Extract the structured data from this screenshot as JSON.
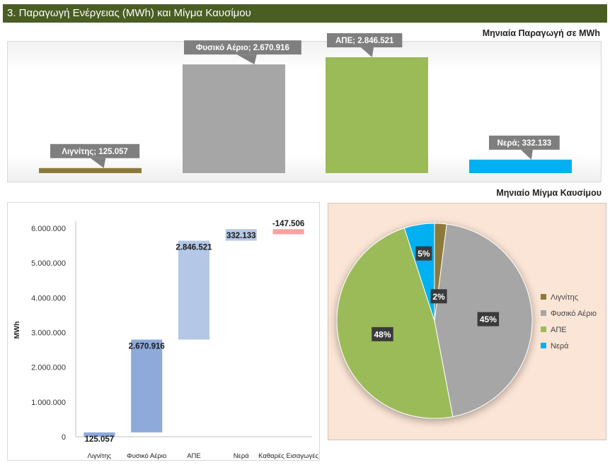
{
  "header": {
    "title": "3. Παραγωγή Ενέργειας (MWh) και Μίγμα Καυσίμου"
  },
  "chart_data": [
    {
      "type": "bar",
      "title": "Μηνιαία Παραγωγή σε MWh",
      "categories": [
        "Λιγνίτης",
        "Φυσικό Αέριο",
        "ΑΠΕ",
        "Νερά"
      ],
      "values": [
        125057,
        2670916,
        2846521,
        332133
      ],
      "value_labels": [
        "Λιγνίτης; 125.057",
        "Φυσικό Αέριο; 2.670.916",
        "ΑΠΕ; 2.846.521",
        "Νερά; 332.133"
      ],
      "colors": [
        "#8c7a3b",
        "#a6a6a6",
        "#9bbb59",
        "#00b0f0"
      ],
      "xlabel": "",
      "ylabel": "",
      "ylim": [
        0,
        2846521
      ]
    },
    {
      "type": "bar",
      "subtype": "waterfall",
      "title": "",
      "categories": [
        "Λιγνίτης",
        "Φυσικό Αέριο",
        "ΑΠΕ",
        "Νερά",
        "Καθαρές Εισαγωγές"
      ],
      "values": [
        125057,
        2670916,
        2846521,
        332133,
        -147506
      ],
      "value_labels": [
        "125.057",
        "2.670.916",
        "2.846.521",
        "332.133",
        "-147.506"
      ],
      "colors": [
        "#8eaadb",
        "#8eaadb",
        "#b4c7e7",
        "#b4c7e7",
        "#f4a3a3"
      ],
      "ylabel": "MWh",
      "xlabel": "",
      "ylim": [
        0,
        6000000
      ],
      "y_ticks": [
        0,
        1000000,
        2000000,
        3000000,
        4000000,
        5000000,
        6000000
      ],
      "y_tick_labels": [
        "0",
        "1.000.000",
        "2.000.000",
        "3.000.000",
        "4.000.000",
        "5.000.000",
        "6.000.000"
      ],
      "grid": false
    },
    {
      "type": "pie",
      "title": "Μηνιαίο Μίγμα Καυσίμου",
      "categories": [
        "Λιγνίτης",
        "Φυσικό Αέριο",
        "ΑΠΕ",
        "Νερά"
      ],
      "values": [
        2,
        45,
        48,
        5
      ],
      "value_labels": [
        "2%",
        "45%",
        "48%",
        "5%"
      ],
      "colors": [
        "#8c7a3b",
        "#a6a6a6",
        "#9bbb59",
        "#00b0f0"
      ],
      "legend": "right"
    }
  ]
}
